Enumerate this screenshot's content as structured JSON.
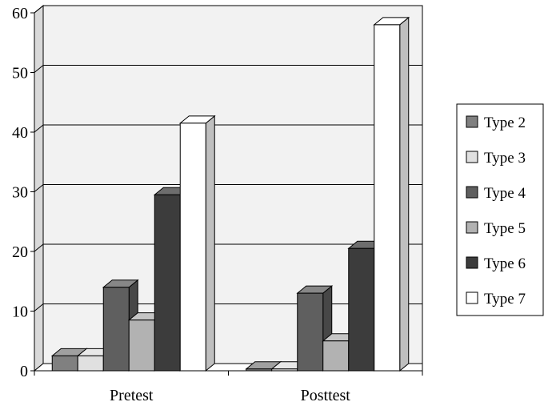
{
  "chart_data": {
    "type": "bar",
    "style": "3d-clustered-column",
    "categories": [
      "Pretest",
      "Posttest"
    ],
    "series": [
      {
        "name": "Type 2",
        "values": [
          2.5,
          0.3
        ],
        "color": "#808080"
      },
      {
        "name": "Type 3",
        "values": [
          2.5,
          0.3
        ],
        "color": "#e0e0e0"
      },
      {
        "name": "Type 4",
        "values": [
          14,
          13
        ],
        "color": "#5f5f5f"
      },
      {
        "name": "Type 5",
        "values": [
          8.5,
          5
        ],
        "color": "#b2b2b2"
      },
      {
        "name": "Type 6",
        "values": [
          29.5,
          20.5
        ],
        "color": "#3c3c3c"
      },
      {
        "name": "Type 7",
        "values": [
          41.5,
          58
        ],
        "color": "#ffffff"
      }
    ],
    "yticks": [
      "0",
      "10",
      "20",
      "30",
      "40",
      "50",
      "60"
    ],
    "ylim": [
      0,
      60
    ],
    "grid": true,
    "legend": "right",
    "colors": {
      "plot_wall": "#f2f2f2",
      "gridline": "#000000",
      "outline": "#000000"
    }
  }
}
